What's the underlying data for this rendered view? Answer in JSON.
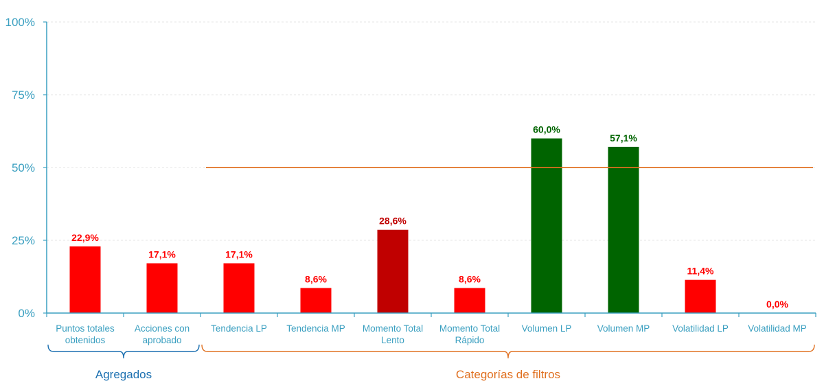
{
  "chart_data": {
    "type": "bar",
    "title": "",
    "xlabel": "",
    "ylabel": "",
    "ylim": [
      0,
      100
    ],
    "yticks": [
      "0%",
      "25%",
      "50%",
      "75%",
      "100%"
    ],
    "ytick_values": [
      0,
      25,
      50,
      75,
      100
    ],
    "grid": true,
    "categories": [
      [
        "Puntos totales",
        "obtenidos"
      ],
      [
        "Acciones con",
        "aprobado"
      ],
      [
        "Tendencia LP"
      ],
      [
        "Tendencia MP"
      ],
      [
        "Momento Total",
        "Lento"
      ],
      [
        "Momento Total",
        "Rápido"
      ],
      [
        "Volumen LP"
      ],
      [
        "Volumen MP"
      ],
      [
        "Volatilidad LP"
      ],
      [
        "Volatilidad MP"
      ]
    ],
    "values": [
      22.9,
      17.1,
      17.1,
      8.6,
      28.6,
      8.6,
      60.0,
      57.1,
      11.4,
      0.0
    ],
    "data_labels": [
      "22,9%",
      "17,1%",
      "17,1%",
      "8,6%",
      "28,6%",
      "8,6%",
      "60,0%",
      "57,1%",
      "11,4%",
      "0,0%"
    ],
    "bar_colors": [
      "#ff0000",
      "#ff0000",
      "#ff0000",
      "#ff0000",
      "#c00000",
      "#ff0000",
      "#006400",
      "#006400",
      "#ff0000",
      "#ff0000"
    ],
    "label_colors": [
      "#ff0000",
      "#ff0000",
      "#ff0000",
      "#ff0000",
      "#c00000",
      "#ff0000",
      "#006400",
      "#006400",
      "#ff0000",
      "#ff0000"
    ],
    "reference_line": {
      "value": 50,
      "from_category": 2,
      "to_category": 9,
      "color": "#e07020"
    },
    "groups": [
      {
        "label": "Agregados",
        "from_category": 0,
        "to_category": 1,
        "color": "#1a6fb0"
      },
      {
        "label": "Categorías de filtros",
        "from_category": 2,
        "to_category": 9,
        "color": "#e07020"
      }
    ],
    "colors": {
      "axis": "#3a9fc0",
      "grid": "#e4e4e4"
    }
  }
}
